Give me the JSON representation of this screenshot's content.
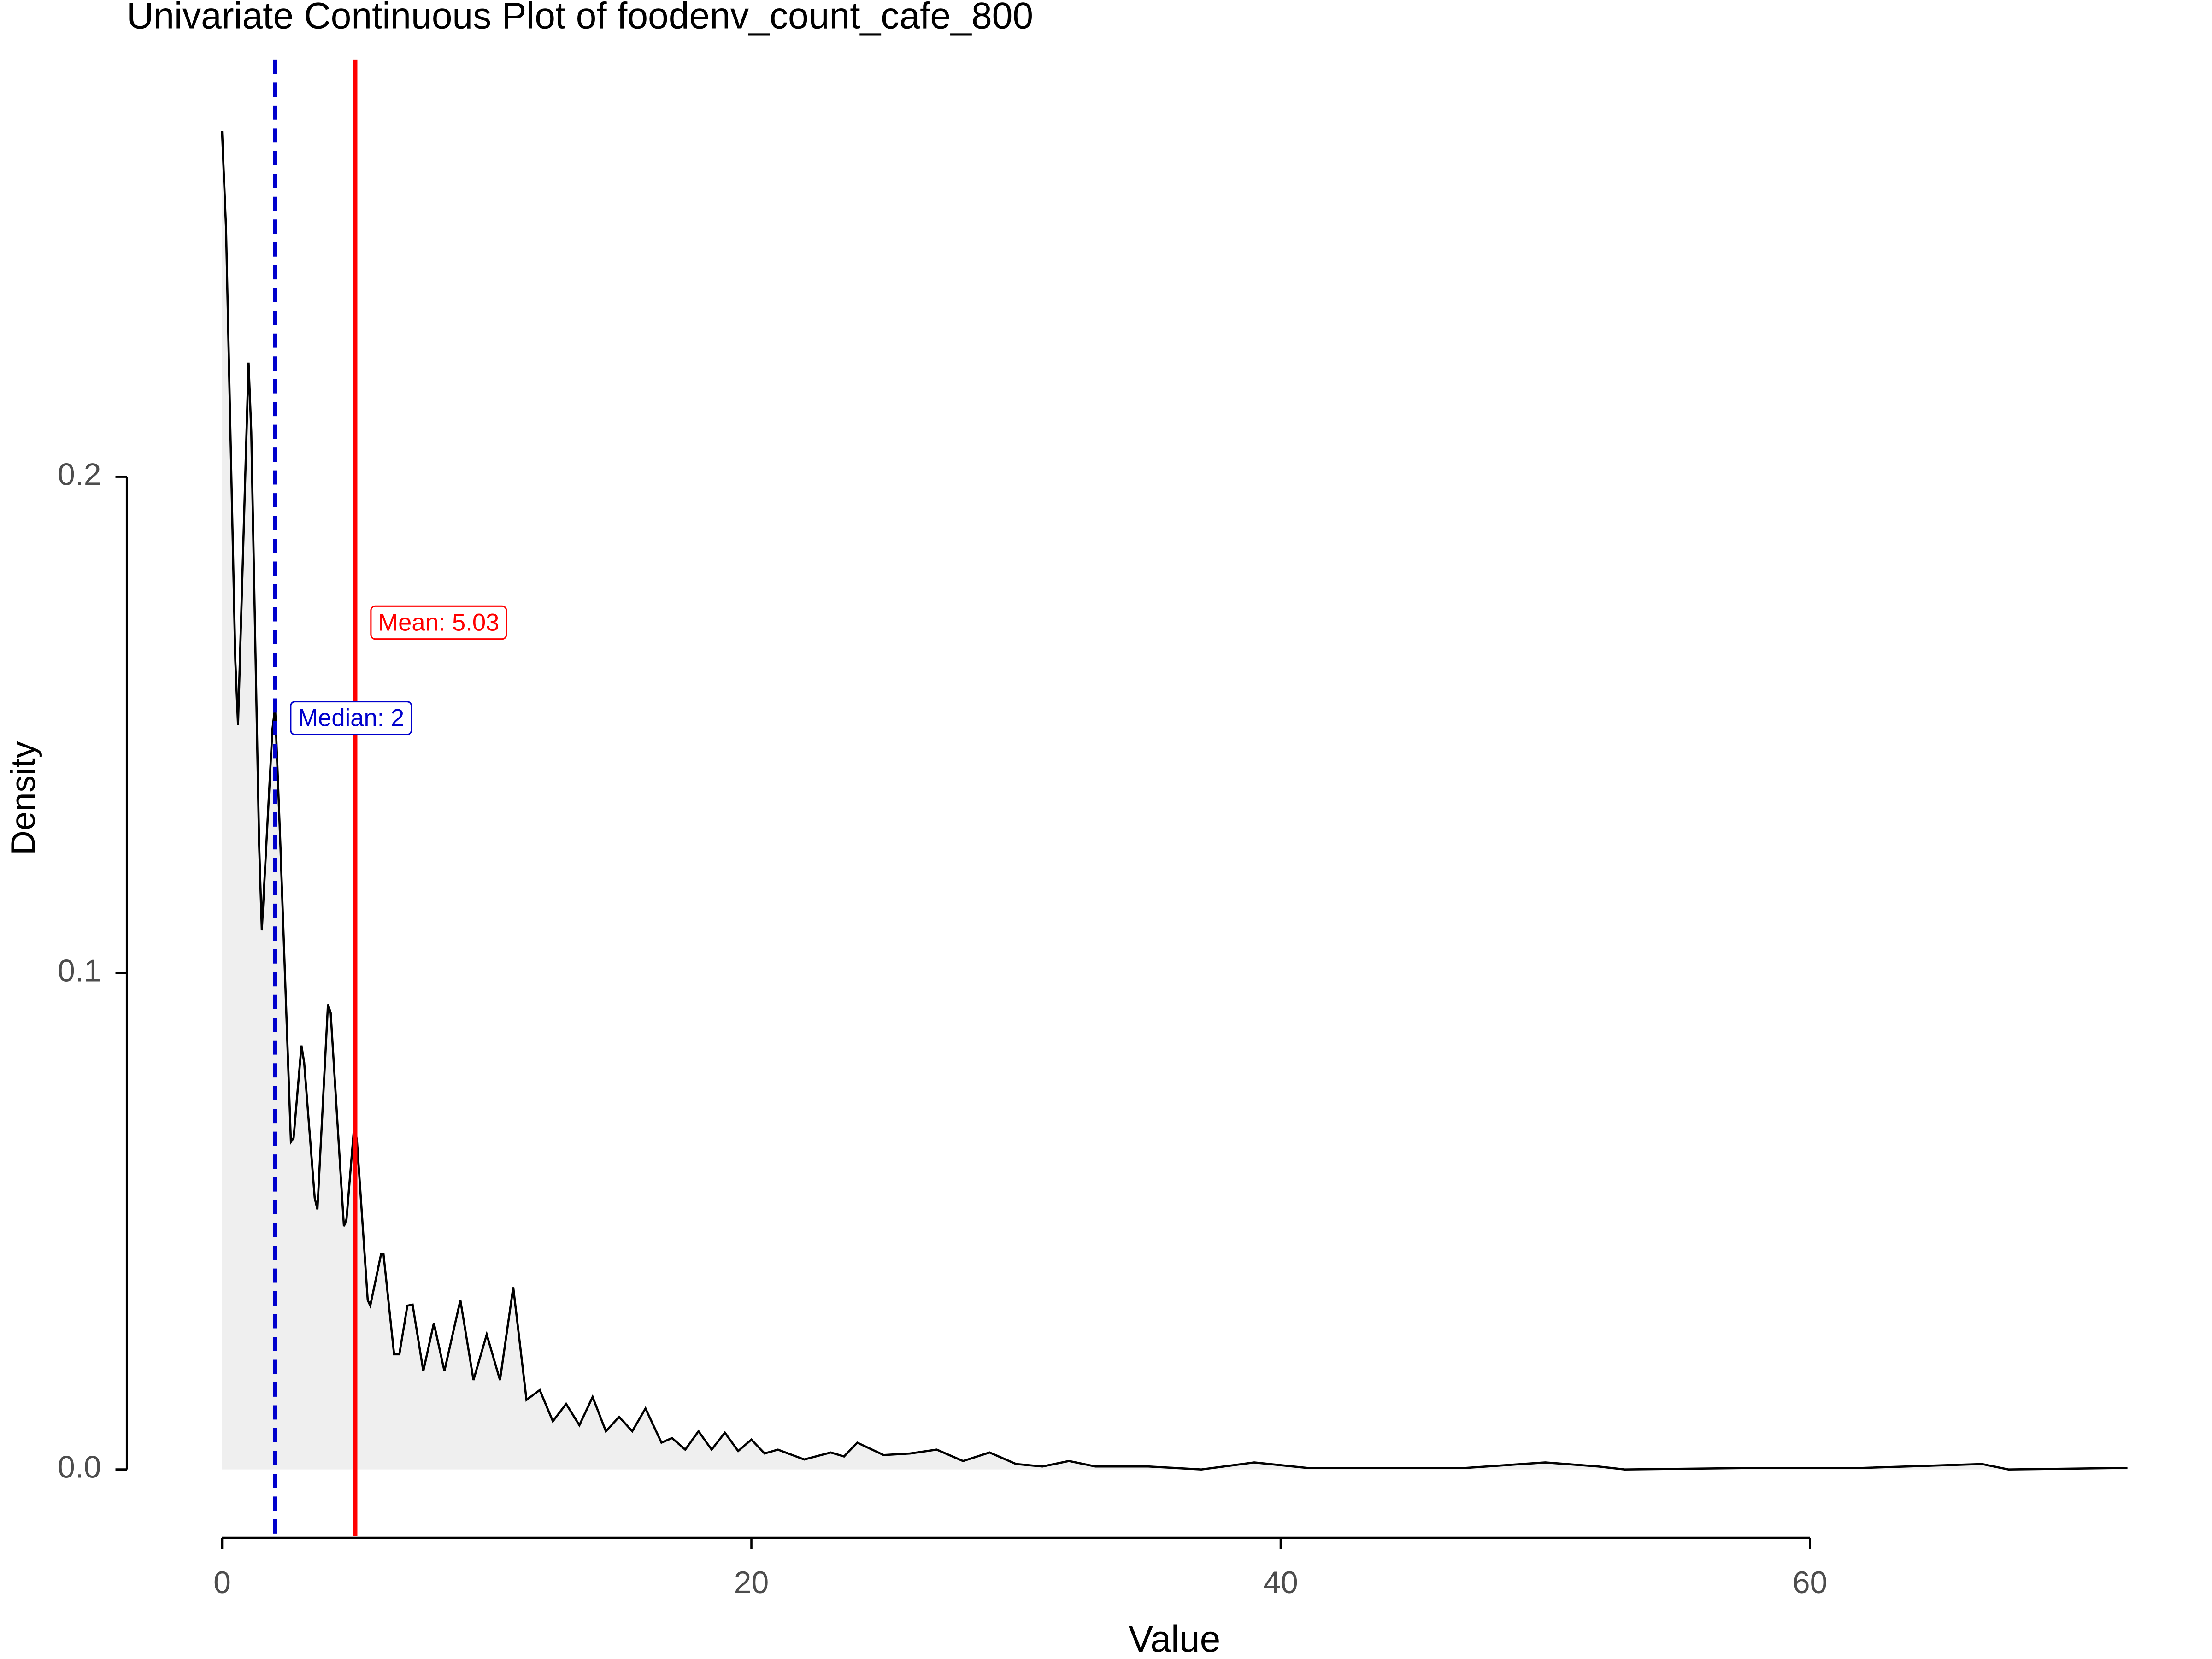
{
  "chart_data": {
    "type": "density",
    "title": "Univariate Continuous Plot of foodenv_count_cafe_800",
    "x_label": "Value",
    "y_label": "Density",
    "x": [
      0,
      0.15,
      0.5,
      0.6,
      1.0,
      1.1,
      1.4,
      1.5,
      1.9,
      2.0,
      2.2,
      2.6,
      2.7,
      3.0,
      3.1,
      3.5,
      3.6,
      4.0,
      4.1,
      4.5,
      4.6,
      4.7,
      5.0,
      5.1,
      5.5,
      5.6,
      6.0,
      6.1,
      6.5,
      6.7,
      7.0,
      7.2,
      7.6,
      8.0,
      8.4,
      9.0,
      9.5,
      10.0,
      10.5,
      11.0,
      11.5,
      12.0,
      12.5,
      13.0,
      13.5,
      14.0,
      14.5,
      15.0,
      15.5,
      16.0,
      16.6,
      17.0,
      17.5,
      18.0,
      18.5,
      19.0,
      19.5,
      20.0,
      20.5,
      21.0,
      22,
      23,
      23.5,
      24,
      25,
      26,
      27,
      28,
      29,
      30,
      31,
      32,
      33,
      35,
      37,
      39,
      41,
      45,
      47,
      50,
      52,
      53,
      58,
      62,
      66.5,
      67.5,
      72
    ],
    "values": [
      0.2696,
      0.25,
      0.163,
      0.15,
      0.223,
      0.209,
      0.126,
      0.1086,
      0.149,
      0.1536,
      0.126,
      0.066,
      0.0668,
      0.0854,
      0.082,
      0.0547,
      0.0524,
      0.0937,
      0.092,
      0.0576,
      0.049,
      0.0504,
      0.0699,
      0.066,
      0.0341,
      0.033,
      0.0433,
      0.0433,
      0.0232,
      0.0232,
      0.033,
      0.0332,
      0.0198,
      0.0295,
      0.0198,
      0.0341,
      0.018,
      0.0272,
      0.018,
      0.0367,
      0.014,
      0.016,
      0.0097,
      0.0132,
      0.0089,
      0.0146,
      0.0077,
      0.0106,
      0.0077,
      0.0123,
      0.0054,
      0.0063,
      0.004,
      0.0077,
      0.004,
      0.0074,
      0.0037,
      0.006,
      0.0032,
      0.004,
      0.002,
      0.0034,
      0.0026,
      0.0054,
      0.0029,
      0.0032,
      0.004,
      0.0017,
      0.0034,
      0.0011,
      0.0006,
      0.0017,
      0.0006,
      0.0006,
      0,
      0.0014,
      0.0003,
      0.0003,
      0.0003,
      0.0014,
      0.0006,
      0,
      0.0003,
      0.0003,
      0.0011,
      0,
      0.0003
    ],
    "line_color": "#000000",
    "fill_color": "#efefef",
    "xlim": [
      -3.6,
      75.3
    ],
    "ylim": [
      -0.0135,
      0.284
    ],
    "xticks": [
      0,
      20,
      40,
      60
    ],
    "yticks": [
      {
        "value": 0,
        "label": "0.0"
      },
      {
        "value": 0.1,
        "label": "0.1"
      },
      {
        "value": 0.2,
        "label": "0.2"
      }
    ],
    "reference_lines": [
      {
        "value": 5.03,
        "label": "Mean: 5.03",
        "color": "#ff0000",
        "dashed": false
      },
      {
        "value": 2,
        "label": "Median: 2",
        "color": "#0000cc",
        "dashed": true
      }
    ]
  }
}
